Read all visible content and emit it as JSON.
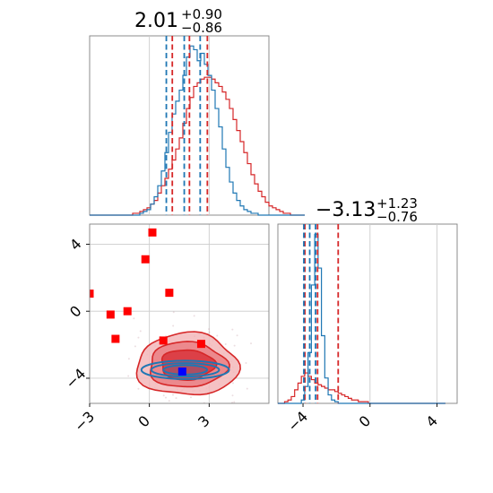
{
  "colors": {
    "red": "#d62728",
    "blue": "#1f77b4",
    "blue_point": "#0000ff",
    "grid": "#cccccc"
  },
  "chart_data": [
    {
      "panel": "top-left",
      "type": "histogram",
      "title": {
        "main": "2.01",
        "sup": "+0.90",
        "sub": "−0.86"
      },
      "xlim": [
        -3,
        6
      ],
      "grid_x": [
        0,
        3
      ],
      "series": [
        {
          "color": "red",
          "x_start": -3.0,
          "bin_width": 0.18,
          "counts": [
            0,
            0,
            0,
            0,
            0,
            0,
            0,
            0,
            0,
            0,
            0,
            0,
            1,
            1,
            2,
            3,
            4,
            6,
            8,
            12,
            16,
            20,
            25,
            30,
            36,
            42,
            50,
            58,
            64,
            70,
            72,
            74,
            75,
            75,
            74,
            72,
            70,
            67,
            63,
            58,
            52,
            46,
            40,
            34,
            28,
            22,
            17,
            13,
            10,
            7,
            5,
            4,
            3,
            2,
            1,
            1,
            0,
            0,
            0,
            0
          ]
        },
        {
          "color": "blue",
          "x_start": -3.0,
          "bin_width": 0.18,
          "counts": [
            0,
            0,
            0,
            0,
            0,
            0,
            0,
            0,
            0,
            0,
            0,
            0,
            0,
            0,
            1,
            2,
            3,
            6,
            10,
            16,
            24,
            34,
            45,
            55,
            62,
            68,
            76,
            86,
            92,
            90,
            84,
            88,
            82,
            76,
            68,
            58,
            48,
            36,
            26,
            18,
            12,
            8,
            5,
            3,
            2,
            1,
            1,
            0,
            0,
            0,
            0,
            0,
            0,
            0,
            0,
            0,
            0,
            0,
            0,
            0
          ]
        }
      ],
      "quantile_lines": [
        {
          "color": "red",
          "values": [
            1.15,
            2.01,
            2.91
          ]
        },
        {
          "color": "blue",
          "values": [
            0.85,
            1.75,
            2.55
          ]
        }
      ]
    },
    {
      "panel": "bottom-left",
      "type": "scatter",
      "xlim": [
        -3,
        6
      ],
      "ylim": [
        -5.5,
        5.2
      ],
      "xticks": [
        -3,
        0,
        3
      ],
      "yticks": [
        -4,
        0,
        4
      ],
      "grid_x": [
        0,
        3
      ],
      "grid_y": [
        -4,
        0,
        4
      ],
      "red_points": [
        {
          "x": 0.15,
          "y": 4.7
        },
        {
          "x": -0.2,
          "y": 3.1
        },
        {
          "x": -3.0,
          "y": 1.05
        },
        {
          "x": 1.0,
          "y": 1.1
        },
        {
          "x": -1.1,
          "y": 0.0
        },
        {
          "x": -1.95,
          "y": -0.2
        },
        {
          "x": -1.7,
          "y": -1.65
        },
        {
          "x": 0.7,
          "y": -1.75
        },
        {
          "x": 2.6,
          "y": -1.95
        }
      ],
      "blue_point": {
        "x": 1.65,
        "y": -3.6
      },
      "red_contours": {
        "center": [
          1.9,
          -3.2
        ],
        "radii": [
          [
            2.55,
            1.85
          ],
          [
            1.95,
            1.35
          ],
          [
            1.35,
            0.9
          ]
        ]
      },
      "blue_contours": {
        "center": [
          1.8,
          -3.5
        ],
        "radii": [
          [
            2.2,
            0.55
          ],
          [
            1.7,
            0.4
          ],
          [
            1.1,
            0.28
          ]
        ]
      }
    },
    {
      "panel": "bottom-right",
      "type": "histogram",
      "title": {
        "main": "−3.13",
        "sup": "+1.23",
        "sub": "−0.76"
      },
      "xlim": [
        -5.5,
        5.2
      ],
      "xticks": [
        -4,
        0,
        4
      ],
      "grid_x": [
        0,
        4
      ],
      "series": [
        {
          "color": "red",
          "x_start": -5.5,
          "bin_width": 0.2,
          "counts": [
            0,
            0,
            1,
            2,
            4,
            8,
            12,
            16,
            18,
            16,
            14,
            12,
            11,
            10,
            9,
            8,
            8,
            7,
            6,
            5,
            4,
            3,
            2,
            2,
            1,
            1,
            1,
            0,
            0,
            0,
            0,
            0,
            0,
            0,
            0,
            0,
            0,
            0,
            0,
            0,
            0,
            0,
            0,
            0,
            0,
            0,
            0,
            0,
            0,
            0
          ]
        },
        {
          "color": "blue",
          "x_start": -5.5,
          "bin_width": 0.2,
          "counts": [
            0,
            0,
            0,
            0,
            0,
            0,
            0,
            2,
            10,
            30,
            70,
            100,
            80,
            40,
            15,
            5,
            2,
            1,
            0,
            0,
            0,
            0,
            0,
            0,
            0,
            0,
            0,
            0,
            0,
            0,
            0,
            0,
            0,
            0,
            0,
            0,
            0,
            0,
            0,
            0,
            0,
            0,
            0,
            0,
            0,
            0,
            0,
            0,
            0,
            0
          ]
        }
      ],
      "quantile_lines": [
        {
          "color": "red",
          "values": [
            -3.89,
            -3.13,
            -1.9
          ]
        },
        {
          "color": "blue",
          "values": [
            -3.95,
            -3.6,
            -3.25
          ]
        }
      ]
    }
  ]
}
